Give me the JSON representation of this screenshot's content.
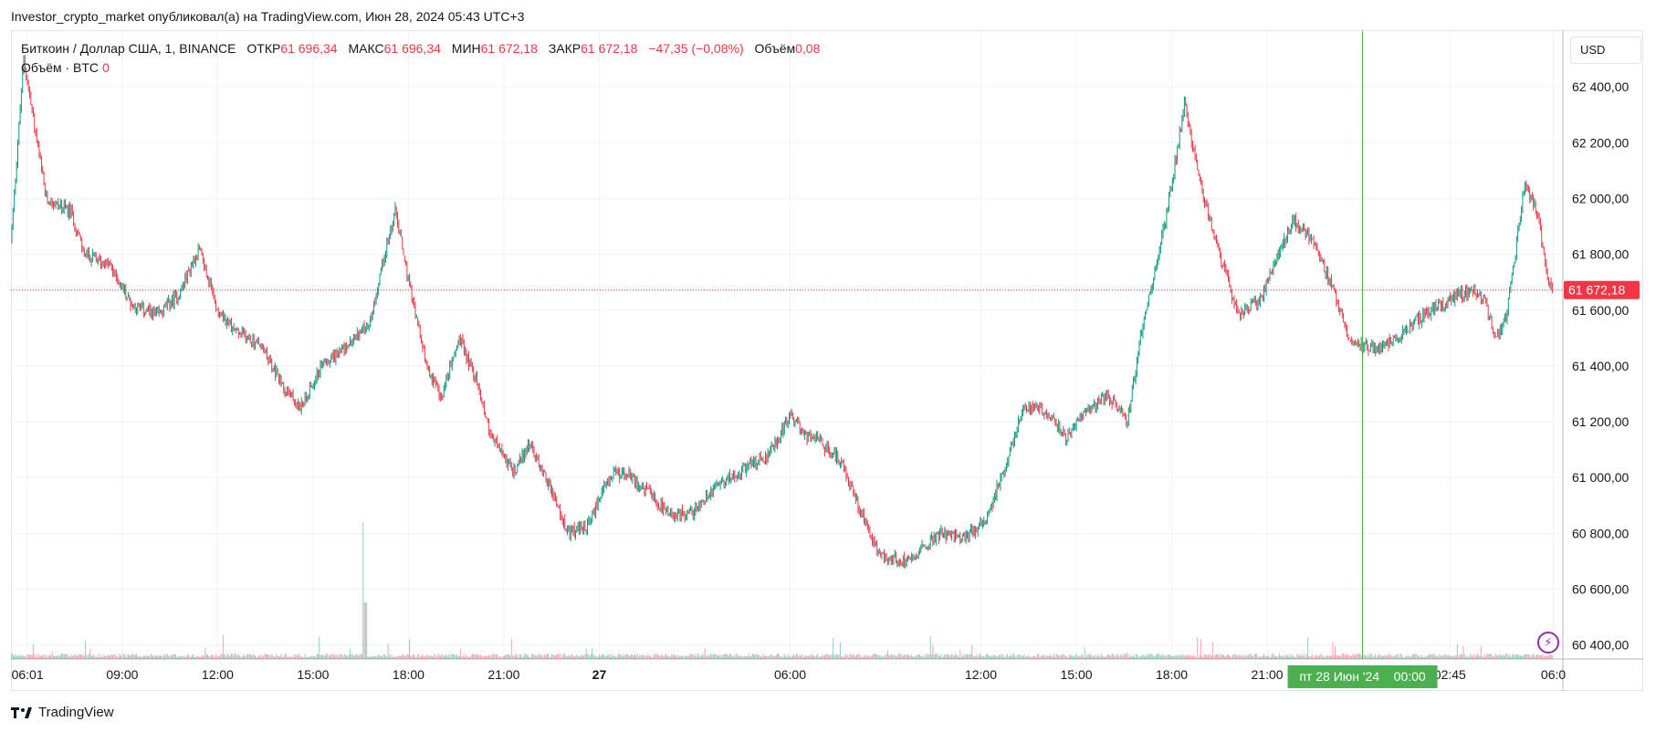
{
  "header": {
    "publisher": "Investor_crypto_market опубликовал(а) на TradingView.com, Июн 28, 2024 05:43 UTC+3"
  },
  "legend": {
    "symbol": "Биткоин / Доллар США, 1, BINANCE",
    "open_label": "ОТКР",
    "open_value": "61 696,34",
    "high_label": "МАКС",
    "high_value": "61 696,34",
    "low_label": "МИН",
    "low_value": "61 672,18",
    "close_label": "ЗАКР",
    "close_value": "61 672,18",
    "change": "−47,35 (−0,08%)",
    "volume_label": "Объём",
    "volume_value": "0,08",
    "volume_study": "Объём · BTC",
    "volume_study_value": "0"
  },
  "currency_button": "USD",
  "crosshair_label": "пт 28 Июн '24    00:00",
  "last_price_label": "61 672,18",
  "brand": "TradingView",
  "colors": {
    "up": "#089981",
    "down": "#f23645",
    "crosshair": "#4caf50",
    "accent": "#2962ff"
  },
  "chart_data": {
    "type": "candlestick",
    "symbol": "BTC/USD",
    "interval": "1 minute",
    "y_axis_ticks": [
      "62 400,00",
      "62 200,00",
      "62 000,00",
      "61 800,00",
      "61 600,00",
      "61 400,00",
      "61 200,00",
      "61 000,00",
      "60 800,00",
      "60 600,00",
      "60 400,00"
    ],
    "y_tick_values": [
      62400,
      62200,
      62000,
      61800,
      61600,
      61400,
      61200,
      61000,
      60800,
      60600,
      60400
    ],
    "ylim": [
      60350,
      62600
    ],
    "x_axis_ticks": [
      "06:01",
      "09:00",
      "12:00",
      "15:00",
      "18:00",
      "21:00",
      "27",
      "06:00",
      "12:00",
      "15:00",
      "18:00",
      "21:00",
      "02:45",
      "06:0"
    ],
    "x_tick_hours": [
      6.02,
      9,
      12,
      15,
      18,
      21,
      24,
      30,
      36,
      39,
      42,
      45,
      50.75,
      54
    ],
    "xlim_hours": [
      5.5,
      54.3
    ],
    "last_price": 61672.18,
    "crosshair_hour": 48,
    "price_path": [
      [
        5.5,
        61850
      ],
      [
        5.9,
        62500
      ],
      [
        6.6,
        62000
      ],
      [
        7.4,
        61950
      ],
      [
        7.8,
        61800
      ],
      [
        8.6,
        61760
      ],
      [
        9.3,
        61620
      ],
      [
        10.1,
        61580
      ],
      [
        10.8,
        61660
      ],
      [
        11.4,
        61820
      ],
      [
        12.0,
        61600
      ],
      [
        12.6,
        61520
      ],
      [
        13.3,
        61480
      ],
      [
        14.0,
        61340
      ],
      [
        14.6,
        61250
      ],
      [
        15.3,
        61410
      ],
      [
        16.0,
        61460
      ],
      [
        16.8,
        61560
      ],
      [
        17.2,
        61780
      ],
      [
        17.6,
        61960
      ],
      [
        18.0,
        61700
      ],
      [
        18.5,
        61430
      ],
      [
        19.0,
        61280
      ],
      [
        19.6,
        61500
      ],
      [
        20.1,
        61360
      ],
      [
        20.6,
        61150
      ],
      [
        21.3,
        61020
      ],
      [
        21.8,
        61120
      ],
      [
        22.4,
        60980
      ],
      [
        23.0,
        60800
      ],
      [
        23.6,
        60820
      ],
      [
        24.3,
        61000
      ],
      [
        24.8,
        61020
      ],
      [
        25.5,
        60950
      ],
      [
        26.2,
        60860
      ],
      [
        27.0,
        60880
      ],
      [
        27.7,
        60980
      ],
      [
        28.4,
        61020
      ],
      [
        29.3,
        61080
      ],
      [
        30.0,
        61220
      ],
      [
        30.5,
        61150
      ],
      [
        31.0,
        61120
      ],
      [
        31.6,
        61060
      ],
      [
        32.2,
        60880
      ],
      [
        32.8,
        60720
      ],
      [
        33.5,
        60700
      ],
      [
        34.1,
        60740
      ],
      [
        34.7,
        60800
      ],
      [
        35.5,
        60780
      ],
      [
        36.2,
        60860
      ],
      [
        36.8,
        61050
      ],
      [
        37.3,
        61250
      ],
      [
        38.0,
        61240
      ],
      [
        38.7,
        61140
      ],
      [
        39.3,
        61240
      ],
      [
        40.0,
        61300
      ],
      [
        40.6,
        61200
      ],
      [
        41.1,
        61560
      ],
      [
        41.6,
        61800
      ],
      [
        42.0,
        62050
      ],
      [
        42.4,
        62350
      ],
      [
        42.9,
        62050
      ],
      [
        43.5,
        61800
      ],
      [
        44.1,
        61580
      ],
      [
        44.8,
        61640
      ],
      [
        45.3,
        61780
      ],
      [
        45.8,
        61920
      ],
      [
        46.4,
        61860
      ],
      [
        47.0,
        61700
      ],
      [
        47.6,
        61500
      ],
      [
        48.0,
        61470
      ],
      [
        48.6,
        61460
      ],
      [
        49.3,
        61520
      ],
      [
        50.0,
        61590
      ],
      [
        50.8,
        61640
      ],
      [
        51.4,
        61670
      ],
      [
        51.8,
        61640
      ],
      [
        52.2,
        61500
      ],
      [
        52.5,
        61560
      ],
      [
        52.8,
        61800
      ],
      [
        53.1,
        62050
      ],
      [
        53.5,
        61950
      ],
      [
        53.8,
        61720
      ],
      [
        54.0,
        61672.18
      ]
    ]
  }
}
